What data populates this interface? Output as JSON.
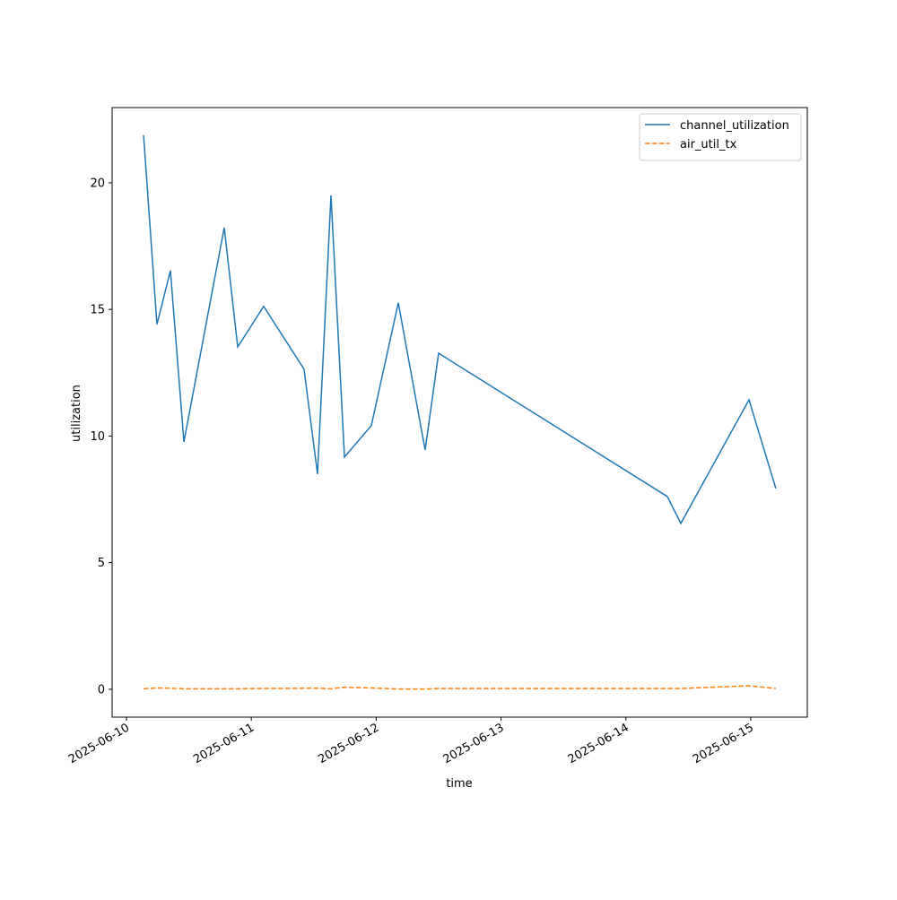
{
  "chart_data": {
    "type": "line",
    "xlabel": "time",
    "ylabel": "utilization",
    "x": [
      0.137,
      0.244,
      0.352,
      0.46,
      0.783,
      0.891,
      1.099,
      1.422,
      1.53,
      1.638,
      1.746,
      1.961,
      2.177,
      2.392,
      2.5,
      4.332,
      4.44,
      4.986,
      5.201
    ],
    "series": [
      {
        "name": "channel_utilization",
        "color": "#1f77b4",
        "dash": "solid",
        "values": [
          21.88,
          14.41,
          16.53,
          9.77,
          18.23,
          13.52,
          15.12,
          12.64,
          8.5,
          19.5,
          9.17,
          10.41,
          15.26,
          9.45,
          13.27,
          7.61,
          6.55,
          11.43,
          7.93
        ]
      },
      {
        "name": "air_util_tx",
        "color": "#ff7f0e",
        "dash": "dashed",
        "values": [
          0.02,
          0.05,
          0.04,
          0.02,
          0.02,
          0.02,
          0.03,
          0.04,
          0.04,
          0.02,
          0.08,
          0.05,
          0.01,
          0.01,
          0.03,
          0.03,
          0.03,
          0.14,
          0.03
        ]
      }
    ],
    "xlim": [
      -0.115,
      5.453
    ],
    "xticks": [
      {
        "value": 0,
        "label": "2025-06-10"
      },
      {
        "value": 1,
        "label": "2025-06-11"
      },
      {
        "value": 2,
        "label": "2025-06-12"
      },
      {
        "value": 3,
        "label": "2025-06-13"
      },
      {
        "value": 4,
        "label": "2025-06-14"
      },
      {
        "value": 5,
        "label": "2025-06-15"
      }
    ],
    "ylim": [
      -1.1,
      22.97
    ],
    "yticks": [
      0,
      5,
      10,
      15,
      20
    ],
    "legend": "upper right",
    "grid": false
  }
}
